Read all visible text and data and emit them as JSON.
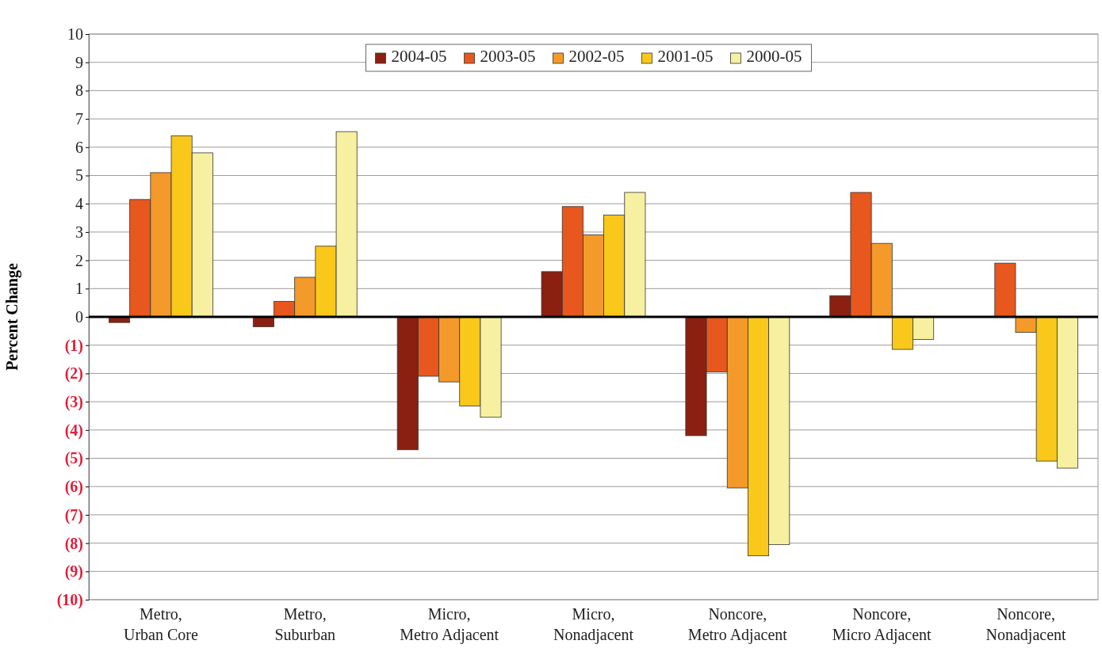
{
  "chart_data": {
    "type": "bar",
    "ylabel": "Percent Change",
    "categories": [
      "Metro,\nUrban Core",
      "Metro,\nSuburban",
      "Micro,\nMetro Adjacent",
      "Micro,\nNonadjacent",
      "Noncore,\nMetro Adjacent",
      "Noncore,\nMicro Adjacent",
      "Noncore,\nNonadjacent"
    ],
    "series": [
      {
        "name": "2004-05",
        "color": "#8b2011",
        "values": [
          -0.2,
          -0.35,
          -4.7,
          1.6,
          -4.2,
          0.75,
          0
        ]
      },
      {
        "name": "2003-05",
        "color": "#e8571e",
        "values": [
          4.15,
          0.55,
          -2.1,
          3.9,
          -1.95,
          4.4,
          1.9
        ]
      },
      {
        "name": "2002-05",
        "color": "#f39a2a",
        "values": [
          5.1,
          1.4,
          -2.3,
          2.9,
          -6.05,
          2.6,
          -0.55
        ]
      },
      {
        "name": "2001-05",
        "color": "#f9c81a",
        "values": [
          6.4,
          2.5,
          -3.15,
          3.6,
          -8.45,
          -1.15,
          -5.1
        ]
      },
      {
        "name": "2000-05",
        "color": "#f7f0a0",
        "values": [
          5.8,
          6.55,
          -3.55,
          4.4,
          -8.05,
          -0.8,
          -5.35
        ]
      }
    ],
    "ylim": [
      -10,
      10
    ],
    "yticks": [
      10,
      9,
      8,
      7,
      6,
      5,
      4,
      3,
      2,
      1,
      0,
      {
        "value": -1,
        "label": "(1)"
      },
      {
        "value": -2,
        "label": "(2)"
      },
      {
        "value": -3,
        "label": "(3)"
      },
      {
        "value": -4,
        "label": "(4)"
      },
      {
        "value": -5,
        "label": "(5)"
      },
      {
        "value": -6,
        "label": "(6)"
      },
      {
        "value": -7,
        "label": "(7)"
      },
      {
        "value": -8,
        "label": "(8)"
      },
      {
        "value": -9,
        "label": "(9)"
      },
      {
        "value": -10,
        "label": "(10)"
      }
    ],
    "grid": "y",
    "legend": "top"
  }
}
